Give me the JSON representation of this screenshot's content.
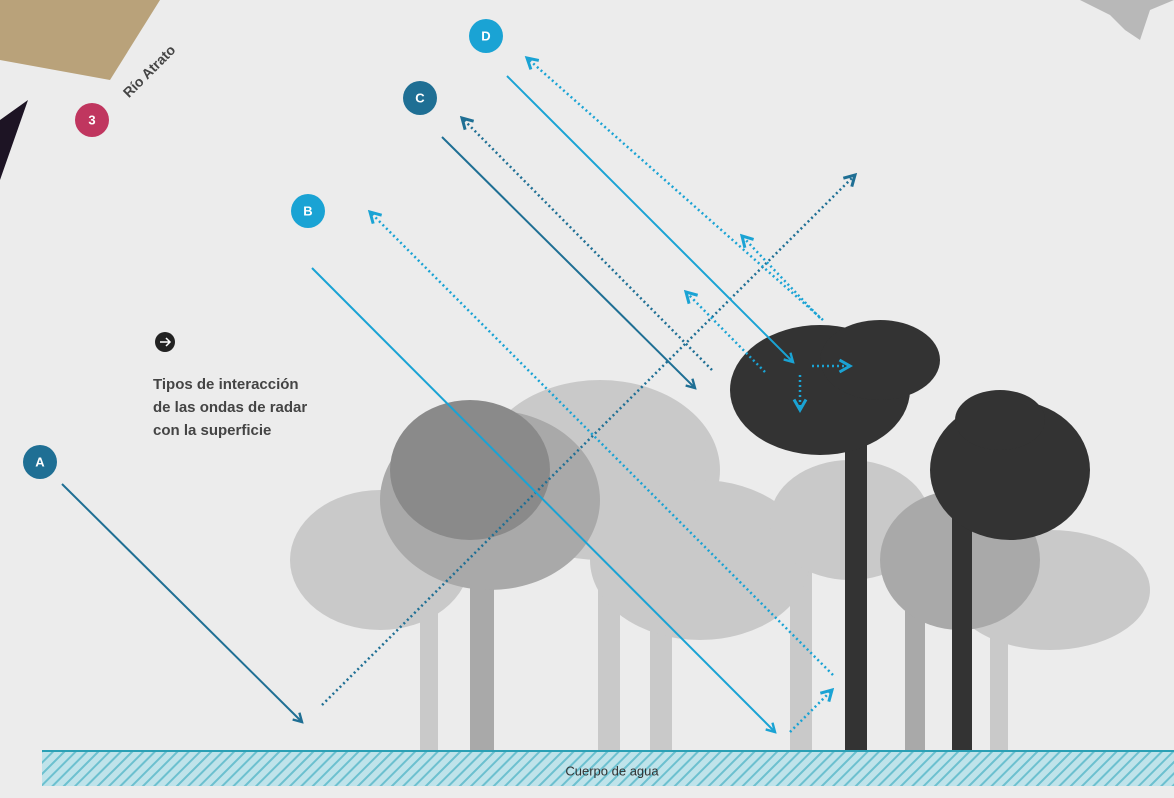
{
  "map_label": {
    "number": "3",
    "name": "Río Atrato"
  },
  "markers": [
    {
      "label": "A"
    },
    {
      "label": "B"
    },
    {
      "label": "C"
    },
    {
      "label": "D"
    }
  ],
  "caption": {
    "lines": [
      "Tipos de interacción",
      "de las ondas de radar",
      "con la superficie"
    ]
  },
  "water": {
    "label": "Cuerpo de agua"
  }
}
